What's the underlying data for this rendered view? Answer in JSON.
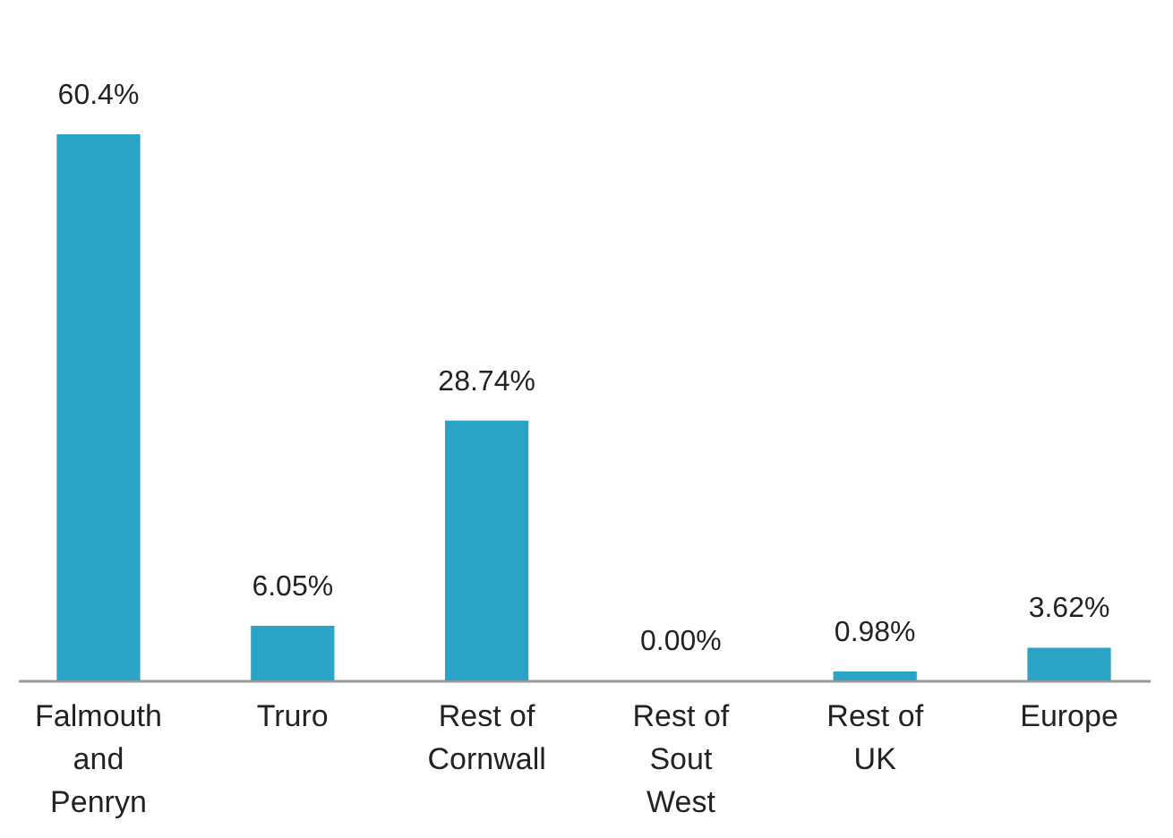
{
  "chart_data": {
    "type": "bar",
    "categories": [
      "Falmouth and Penryn",
      "Truro",
      "Rest of Cornwall",
      "Rest of Sout West",
      "Rest of UK",
      "Europe"
    ],
    "values": [
      60.4,
      6.05,
      28.74,
      0,
      0.98,
      3.62
    ],
    "value_labels": [
      "60.4%",
      "6.05%",
      "28.74%",
      "0.00%",
      "0.98%",
      "3.62%"
    ],
    "color": "#2ba3c6",
    "grid": false
  }
}
